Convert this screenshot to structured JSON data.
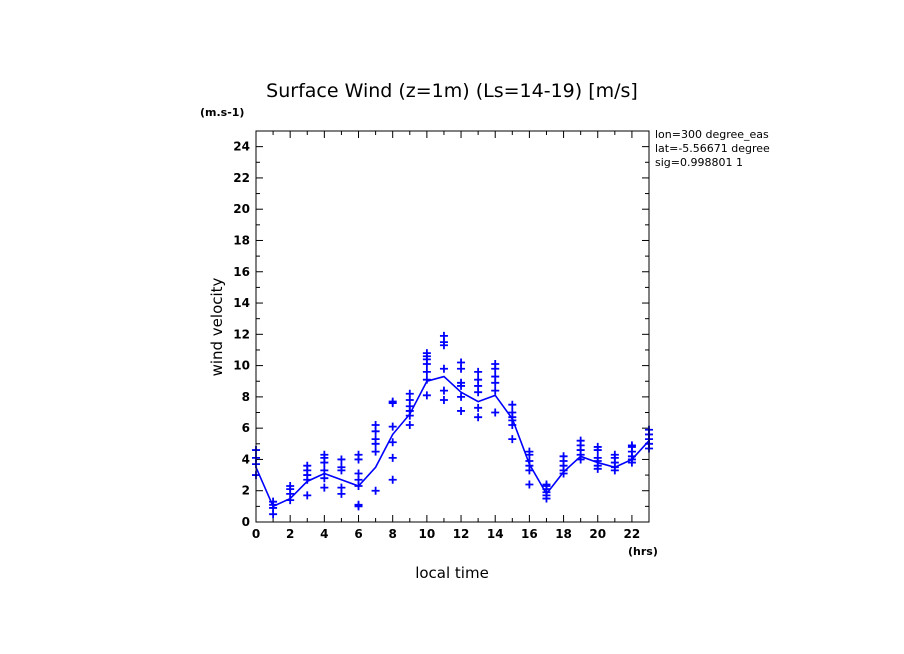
{
  "chart_data": {
    "type": "line",
    "title": "Surface Wind (z=1m) (Ls=14-19) [m/s]",
    "xlabel": "local time",
    "ylabel": "wind velocity",
    "x_unit": "(hrs)",
    "y_unit": "(m.s-1)",
    "xlim": [
      0,
      23
    ],
    "ylim": [
      0,
      25
    ],
    "x_ticks": [
      0,
      2,
      4,
      6,
      8,
      10,
      12,
      14,
      16,
      18,
      20,
      22
    ],
    "y_ticks": [
      0,
      2,
      4,
      6,
      8,
      10,
      12,
      14,
      16,
      18,
      20,
      22,
      24
    ],
    "info_lines": [
      "lon=300 degree_eas",
      "lat=-5.56671 degree",
      "sig=0.998801 1"
    ],
    "color": "#0000ff",
    "grid": false,
    "series": [
      {
        "kind": "line",
        "x": [
          0,
          1,
          2,
          3,
          4,
          5,
          6,
          7,
          8,
          9,
          10,
          11,
          12,
          13,
          14,
          15,
          16,
          17,
          18,
          19,
          20,
          21,
          22,
          23
        ],
        "y": [
          3.5,
          1.0,
          1.5,
          2.6,
          3.1,
          2.7,
          2.3,
          3.5,
          5.6,
          6.9,
          9.0,
          9.3,
          8.3,
          7.7,
          8.1,
          6.6,
          3.7,
          1.8,
          3.2,
          4.2,
          3.8,
          3.5,
          4.0,
          5.2
        ]
      },
      {
        "kind": "scatter",
        "marker": "+",
        "points": [
          [
            0,
            3.0
          ],
          [
            0,
            3.7
          ],
          [
            0,
            4.1
          ],
          [
            0,
            4.6
          ],
          [
            1,
            0.5
          ],
          [
            1,
            0.9
          ],
          [
            1,
            1.1
          ],
          [
            1,
            1.3
          ],
          [
            2,
            1.4
          ],
          [
            2,
            1.8
          ],
          [
            2,
            2.1
          ],
          [
            2,
            2.3
          ],
          [
            3,
            1.7
          ],
          [
            3,
            2.7
          ],
          [
            3,
            3.0
          ],
          [
            3,
            3.3
          ],
          [
            3,
            3.6
          ],
          [
            4,
            2.2
          ],
          [
            4,
            2.8
          ],
          [
            4,
            3.3
          ],
          [
            4,
            3.8
          ],
          [
            4,
            4.1
          ],
          [
            4,
            4.3
          ],
          [
            5,
            1.8
          ],
          [
            5,
            2.2
          ],
          [
            5,
            3.3
          ],
          [
            5,
            3.5
          ],
          [
            5,
            4.0
          ],
          [
            6,
            1.0
          ],
          [
            6,
            1.1
          ],
          [
            6,
            2.3
          ],
          [
            6,
            2.7
          ],
          [
            6,
            3.1
          ],
          [
            6,
            4.0
          ],
          [
            6,
            4.3
          ],
          [
            7,
            2.0
          ],
          [
            7,
            4.5
          ],
          [
            7,
            5.0
          ],
          [
            7,
            5.3
          ],
          [
            7,
            5.8
          ],
          [
            7,
            6.2
          ],
          [
            8,
            2.7
          ],
          [
            8,
            4.1
          ],
          [
            8,
            5.1
          ],
          [
            8,
            6.1
          ],
          [
            8,
            7.6
          ],
          [
            8,
            7.7
          ],
          [
            9,
            6.2
          ],
          [
            9,
            6.8
          ],
          [
            9,
            7.1
          ],
          [
            9,
            7.4
          ],
          [
            9,
            7.8
          ],
          [
            9,
            8.2
          ],
          [
            10,
            8.1
          ],
          [
            10,
            9.1
          ],
          [
            10,
            9.6
          ],
          [
            10,
            10.1
          ],
          [
            10,
            10.4
          ],
          [
            10,
            10.6
          ],
          [
            10,
            10.8
          ],
          [
            11,
            7.8
          ],
          [
            11,
            8.4
          ],
          [
            11,
            9.8
          ],
          [
            11,
            11.3
          ],
          [
            11,
            11.5
          ],
          [
            11,
            11.9
          ],
          [
            12,
            7.1
          ],
          [
            12,
            8.0
          ],
          [
            12,
            8.7
          ],
          [
            12,
            8.9
          ],
          [
            12,
            9.8
          ],
          [
            12,
            10.2
          ],
          [
            13,
            6.7
          ],
          [
            13,
            7.3
          ],
          [
            13,
            8.3
          ],
          [
            13,
            8.7
          ],
          [
            13,
            9.1
          ],
          [
            13,
            9.6
          ],
          [
            14,
            7.0
          ],
          [
            14,
            8.4
          ],
          [
            14,
            8.9
          ],
          [
            14,
            9.3
          ],
          [
            14,
            9.8
          ],
          [
            14,
            10.1
          ],
          [
            15,
            5.3
          ],
          [
            15,
            6.2
          ],
          [
            15,
            6.5
          ],
          [
            15,
            6.7
          ],
          [
            15,
            7.0
          ],
          [
            15,
            7.5
          ],
          [
            16,
            2.4
          ],
          [
            16,
            3.3
          ],
          [
            16,
            3.6
          ],
          [
            16,
            3.9
          ],
          [
            16,
            4.3
          ],
          [
            16,
            4.5
          ],
          [
            17,
            1.5
          ],
          [
            17,
            1.7
          ],
          [
            17,
            1.9
          ],
          [
            17,
            2.1
          ],
          [
            17,
            2.3
          ],
          [
            17,
            2.4
          ],
          [
            18,
            3.1
          ],
          [
            18,
            3.3
          ],
          [
            18,
            3.6
          ],
          [
            18,
            3.9
          ],
          [
            18,
            4.2
          ],
          [
            19,
            4.0
          ],
          [
            19,
            4.3
          ],
          [
            19,
            4.6
          ],
          [
            19,
            4.9
          ],
          [
            19,
            5.2
          ],
          [
            20,
            3.4
          ],
          [
            20,
            3.6
          ],
          [
            20,
            3.9
          ],
          [
            20,
            4.1
          ],
          [
            20,
            4.6
          ],
          [
            20,
            4.8
          ],
          [
            21,
            3.3
          ],
          [
            21,
            3.5
          ],
          [
            21,
            3.8
          ],
          [
            21,
            4.1
          ],
          [
            21,
            4.3
          ],
          [
            22,
            3.8
          ],
          [
            22,
            4.0
          ],
          [
            22,
            4.2
          ],
          [
            22,
            4.5
          ],
          [
            22,
            4.8
          ],
          [
            22,
            4.9
          ],
          [
            23,
            4.7
          ],
          [
            23,
            5.0
          ],
          [
            23,
            5.3
          ],
          [
            23,
            5.6
          ],
          [
            23,
            5.9
          ]
        ]
      }
    ]
  }
}
